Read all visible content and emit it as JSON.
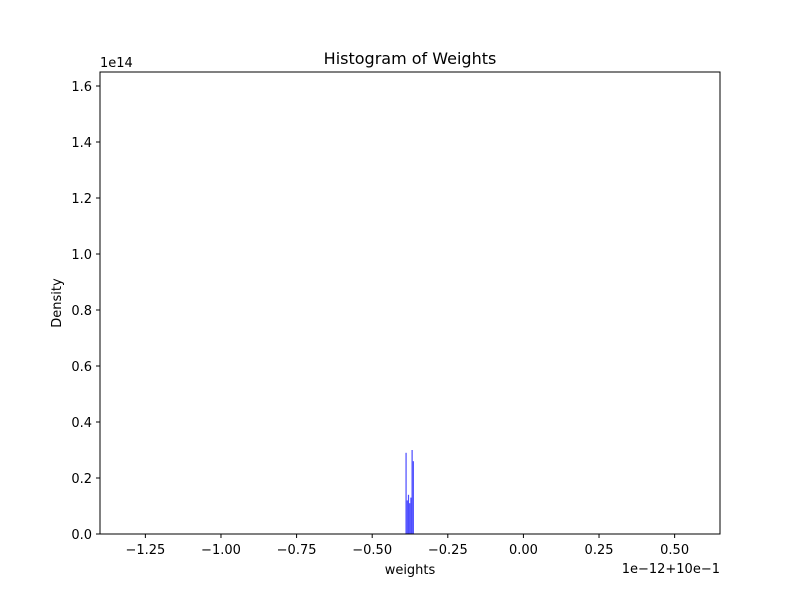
{
  "chart_data": {
    "type": "bar",
    "title": "Histogram of Weights",
    "xlabel": "weights",
    "ylabel": "Density",
    "y_offset_label": "1e14",
    "x_offset_label": "1e−12+10e−1",
    "xlim": [
      -1.4,
      0.65
    ],
    "ylim": [
      0,
      1.65
    ],
    "x_ticks": [
      -1.25,
      -1.0,
      -0.75,
      -0.5,
      -0.25,
      0.0,
      0.25,
      0.5
    ],
    "x_tick_labels": [
      "−1.25",
      "−1.00",
      "−0.75",
      "−0.50",
      "−0.25",
      "0.00",
      "0.25",
      "0.50"
    ],
    "y_ticks": [
      0.0,
      0.2,
      0.4,
      0.6,
      0.8,
      1.0,
      1.2,
      1.4,
      1.6
    ],
    "y_tick_labels": [
      "0.0",
      "0.2",
      "0.4",
      "0.6",
      "0.8",
      "1.0",
      "1.2",
      "1.4",
      "1.6"
    ],
    "grid": false,
    "bar_color": "#0000ff",
    "bar_opacity": 0.7,
    "bins": [
      {
        "x0": -0.39,
        "x1": -0.386,
        "value": 0.29
      },
      {
        "x0": -0.386,
        "x1": -0.382,
        "value": 0.12
      },
      {
        "x0": -0.382,
        "x1": -0.378,
        "value": 0.14
      },
      {
        "x0": -0.378,
        "x1": -0.374,
        "value": 0.11
      },
      {
        "x0": -0.374,
        "x1": -0.37,
        "value": 0.13
      },
      {
        "x0": -0.37,
        "x1": -0.366,
        "value": 0.3
      },
      {
        "x0": -0.366,
        "x1": -0.362,
        "value": 0.26
      }
    ]
  }
}
